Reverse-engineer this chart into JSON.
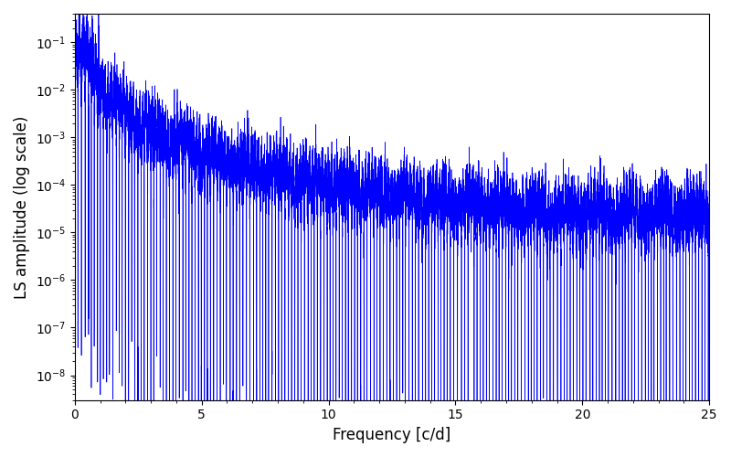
{
  "xlabel": "Frequency [c/d]",
  "ylabel": "LS amplitude (log scale)",
  "xlim": [
    0,
    25
  ],
  "ylim": [
    3e-09,
    0.4
  ],
  "line_color": "#0000ff",
  "line_width": 0.5,
  "freq_max": 25.0,
  "n_points": 15000,
  "seed": 7,
  "background_color": "#ffffff",
  "figsize": [
    8.0,
    5.0
  ],
  "dpi": 100
}
